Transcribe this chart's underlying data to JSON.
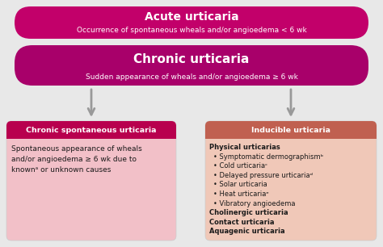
{
  "fig_bg": "#e8e8e8",
  "acute_box": {
    "title": "Acute urticaria",
    "subtitle": "Occurrence of spontaneous wheals and/or angioedema < 6 wk",
    "bg": "#c2006a",
    "text_color": "#ffffff"
  },
  "chronic_box": {
    "title": "Chronic urticaria",
    "subtitle": "Sudden appearance of wheals and/or angioedema ≥ 6 wk",
    "bg": "#a8006a",
    "text_color": "#ffffff"
  },
  "left_box": {
    "header": "Chronic spontaneous urticaria",
    "body": "Spontaneous appearance of wheals\nand/or angioedema ≥ 6 wk due to\nknownᵃ or unknown causes",
    "header_bg": "#b8004e",
    "body_bg": "#f2c0c8",
    "header_text": "#ffffff",
    "text_color": "#1a1a1a"
  },
  "right_box": {
    "header": "Inducible urticaria",
    "lines": [
      {
        "text": "Physical urticarias",
        "bold": true,
        "bullet": false
      },
      {
        "text": "Symptomatic dermographismᵇ",
        "bold": false,
        "bullet": true
      },
      {
        "text": "Cold urticariaᶜ",
        "bold": false,
        "bullet": true
      },
      {
        "text": "Delayed pressure urticariaᵈ",
        "bold": false,
        "bullet": true
      },
      {
        "text": "Solar urticaria",
        "bold": false,
        "bullet": true
      },
      {
        "text": "Heat urticariaᵉ",
        "bold": false,
        "bullet": true
      },
      {
        "text": "Vibratory angioedema",
        "bold": false,
        "bullet": true
      },
      {
        "text": "Cholinergic urticaria",
        "bold": true,
        "bullet": false
      },
      {
        "text": "Contact urticaria",
        "bold": true,
        "bullet": false
      },
      {
        "text": "Aquagenic urticaria",
        "bold": true,
        "bullet": false
      }
    ],
    "header_bg": "#c06050",
    "body_bg": "#f0c8b8",
    "header_text": "#ffffff",
    "text_color": "#1a1a1a"
  },
  "arrow_color": "#999999",
  "border_color": "#cccccc"
}
